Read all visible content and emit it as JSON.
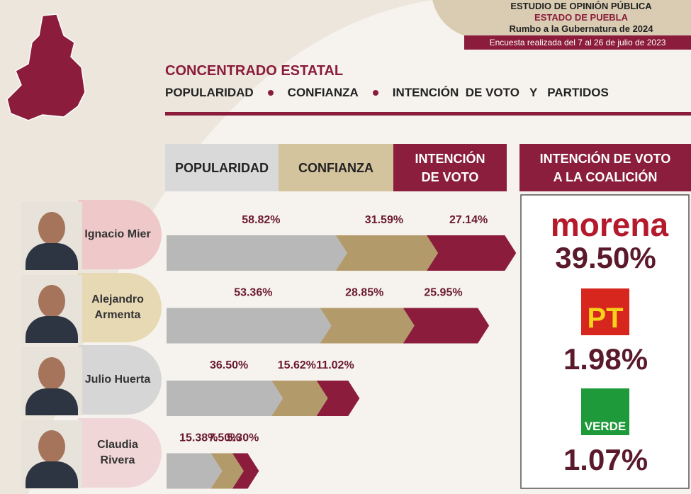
{
  "header": {
    "title": "ESTUDIO DE OPINIÓN PÚBLICA",
    "state": "ESTADO DE PUEBLA",
    "subtitle": "Rumbo a la Gubernatura de 2024",
    "note": "Encuesta realizada del 7 al 26 de julio de 2023"
  },
  "section": {
    "title": "CONCENTRADO ESTATAL",
    "items": [
      "POPULARIDAD",
      "CONFIANZA",
      "INTENCIÓN  DE VOTO",
      "Y",
      "PARTIDOS"
    ]
  },
  "columns": [
    {
      "label": "POPULARIDAD",
      "color": "#b8b8b8"
    },
    {
      "label": "CONFIANZA",
      "color": "#b39a6b"
    },
    {
      "label": "INTENCIÓN DE VOTO",
      "color": "#8b1c3b"
    }
  ],
  "candidates": [
    {
      "name": "Ignacio Mier",
      "values": [
        58.82,
        31.59,
        27.14
      ],
      "value_labels": [
        "58.82%",
        "31.59%",
        "27.14%"
      ]
    },
    {
      "name": "Alejandro Armenta",
      "values": [
        53.36,
        28.85,
        25.95
      ],
      "value_labels": [
        "53.36%",
        "28.85%",
        "25.95%"
      ]
    },
    {
      "name": "Julio Huerta",
      "values": [
        36.5,
        15.62,
        11.02
      ],
      "value_labels": [
        "36.50%",
        "15.62%",
        "11.02%"
      ]
    },
    {
      "name": "Claudia Rivera",
      "values": [
        15.38,
        7.5,
        5.3
      ],
      "value_labels": [
        "15.38%",
        "7.50%",
        "5.30%"
      ]
    }
  ],
  "coalition": {
    "title": "INTENCIÓN DE VOTO A LA COALICIÓN",
    "parties": [
      {
        "name": "morena",
        "value": "39.50%"
      },
      {
        "name": "PT",
        "value": "1.98%"
      },
      {
        "name": "VERDE",
        "value": "1.07%"
      }
    ]
  }
}
